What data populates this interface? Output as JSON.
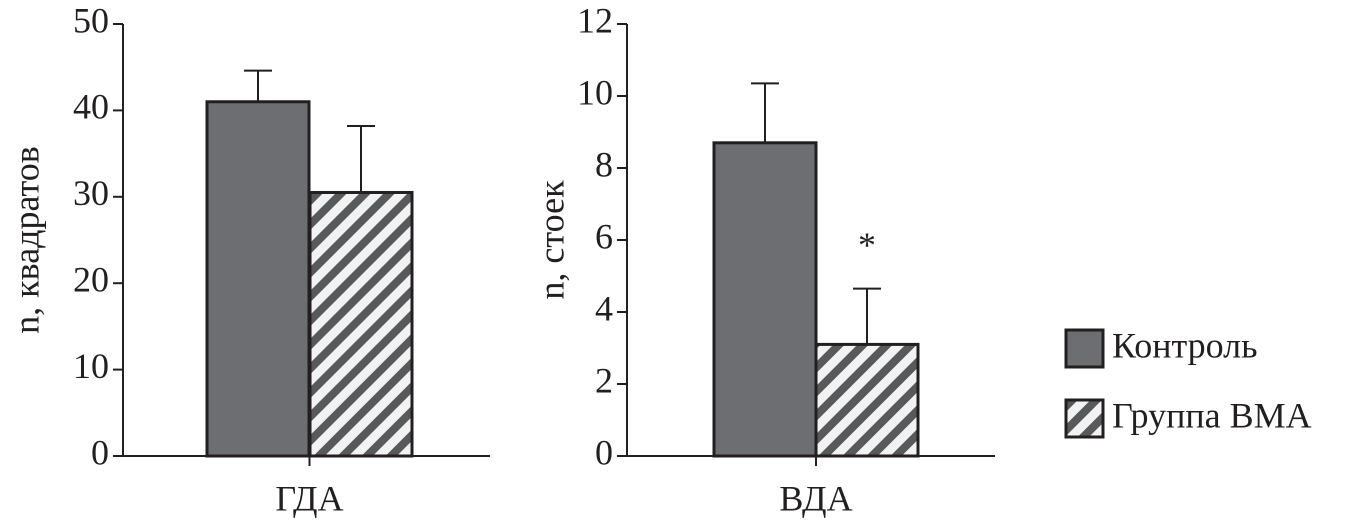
{
  "chart_data": [
    {
      "type": "bar",
      "y_label": "n, квадратов",
      "categories": [
        "ГДА"
      ],
      "ylim": [
        0,
        50
      ],
      "yticks": [
        0,
        10,
        20,
        30,
        40,
        50
      ],
      "series": [
        {
          "name": "Контроль",
          "color": "#6d6e71",
          "values": [
            41
          ],
          "errors": [
            3.6
          ]
        },
        {
          "name": "Группа ВМА",
          "color": "#f2f2f2",
          "hatch": true,
          "values": [
            30.5
          ],
          "errors": [
            7.7
          ]
        }
      ]
    },
    {
      "type": "bar",
      "y_label": "n, стоек",
      "categories": [
        "ВДА"
      ],
      "ylim": [
        0,
        12
      ],
      "yticks": [
        0,
        2,
        4,
        6,
        8,
        10,
        12
      ],
      "annotation": "*",
      "series": [
        {
          "color": "#6d6e71",
          "values": [
            8.7
          ],
          "errors": [
            1.65
          ]
        },
        {
          "color": "#f2f2f2",
          "hatch": true,
          "values": [
            3.1
          ],
          "errors": [
            1.55
          ]
        }
      ]
    }
  ]
}
